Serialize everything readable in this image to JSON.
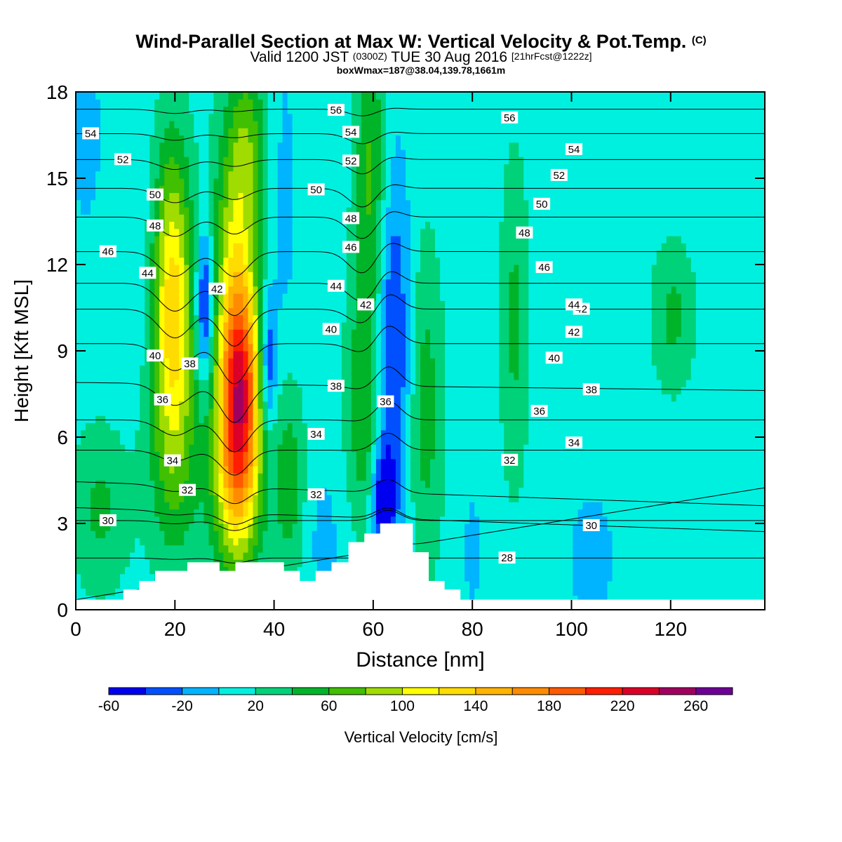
{
  "titles": {
    "main": "Wind-Parallel Section at Max W: Vertical Velocity & Pot.Temp.",
    "copyright": "(C)",
    "valid_prefix": "Valid 1200 JST",
    "utc": "(0300Z)",
    "valid_date": "TUE 30 Aug 2016",
    "forecast": "[21hrFcst@1222z]",
    "box": "boxWmax=187@38.04,139.78,1661m"
  },
  "colors": {
    "bins": [
      "#0000f0",
      "#0050ff",
      "#00b4ff",
      "#00f0e0",
      "#00d27a",
      "#00b42a",
      "#40c000",
      "#a0dc00",
      "#ffff00",
      "#ffdc00",
      "#ffb400",
      "#ff8c00",
      "#ff5a00",
      "#ff1e00",
      "#dc0028",
      "#a00060",
      "#6e0096"
    ],
    "contour": "#000000",
    "terrain": "#ffffff"
  },
  "chart_data": {
    "type": "heatmap",
    "title": "Wind-Parallel Section at Max W: Vertical Velocity & Pot.Temp.",
    "xlabel": "Distance [nm]",
    "ylabel": "Height [Kft MSL]",
    "xlim": [
      0,
      139
    ],
    "ylim": [
      0,
      18
    ],
    "xticks": [
      0,
      20,
      40,
      60,
      80,
      100,
      120
    ],
    "yticks": [
      0,
      3,
      6,
      9,
      12,
      15,
      18
    ],
    "colorbar": {
      "label": "Vertical Velocity [cm/s]",
      "boundaries": [
        -60,
        -40,
        -20,
        0,
        20,
        40,
        60,
        80,
        100,
        120,
        140,
        160,
        180,
        200,
        220,
        240,
        260,
        280
      ],
      "tick_labels": [
        "-60",
        "-20",
        "20",
        "60",
        "100",
        "140",
        "180",
        "220",
        "260"
      ]
    },
    "background_w": 10,
    "features": [
      {
        "x": 19.5,
        "y": 11.0,
        "w": 115,
        "sx": 2.8,
        "sy": 3.6
      },
      {
        "x": 20.0,
        "y": 5.5,
        "w": 45,
        "sx": 4.0,
        "sy": 3.0
      },
      {
        "x": 33.0,
        "y": 8.0,
        "w": 185,
        "sx": 3.0,
        "sy": 2.8
      },
      {
        "x": 32.5,
        "y": 4.5,
        "w": 95,
        "sx": 3.5,
        "sy": 2.5
      },
      {
        "x": 32.0,
        "y": 13.5,
        "w": 65,
        "sx": 3.0,
        "sy": 3.0
      },
      {
        "x": 35.0,
        "y": 16.5,
        "w": 45,
        "sx": 2.5,
        "sy": 2.0
      },
      {
        "x": 26.0,
        "y": 10.5,
        "w": -70,
        "sx": 1.2,
        "sy": 2.0
      },
      {
        "x": 38.8,
        "y": 8.5,
        "w": -65,
        "sx": 1.2,
        "sy": 1.8
      },
      {
        "x": 43.0,
        "y": 4.5,
        "w": 45,
        "sx": 2.2,
        "sy": 2.5
      },
      {
        "x": 62.0,
        "y": 3.8,
        "w": -75,
        "sx": 1.5,
        "sy": 1.2
      },
      {
        "x": 64.0,
        "y": 9.0,
        "w": -55,
        "sx": 2.5,
        "sy": 4.5
      },
      {
        "x": 59.5,
        "y": 15.0,
        "w": 55,
        "sx": 2.3,
        "sy": 4.0
      },
      {
        "x": 58.0,
        "y": 7.0,
        "w": 45,
        "sx": 2.5,
        "sy": 3.0
      },
      {
        "x": 70.5,
        "y": 7.0,
        "w": 40,
        "sx": 2.5,
        "sy": 4.0
      },
      {
        "x": 88.5,
        "y": 10.0,
        "w": 35,
        "sx": 2.0,
        "sy": 4.0
      },
      {
        "x": 120.5,
        "y": 10.2,
        "w": 35,
        "sx": 3.0,
        "sy": 1.8
      },
      {
        "x": 5.0,
        "y": 3.5,
        "w": 35,
        "sx": 4.0,
        "sy": 2.0
      },
      {
        "x": 2.0,
        "y": 16.5,
        "w": -15,
        "sx": 3.0,
        "sy": 3.0
      },
      {
        "x": 12.0,
        "y": 12.0,
        "w": -12,
        "sx": 3.0,
        "sy": 3.0
      },
      {
        "x": 42.0,
        "y": 14.0,
        "w": -15,
        "sx": 2.0,
        "sy": 5.0
      },
      {
        "x": 50.0,
        "y": 2.5,
        "w": -15,
        "sx": 3.0,
        "sy": 2.0
      },
      {
        "x": 80.0,
        "y": 2.0,
        "w": -15,
        "sx": 1.5,
        "sy": 2.0
      },
      {
        "x": 104.0,
        "y": 1.8,
        "w": -17,
        "sx": 4.0,
        "sy": 2.0
      }
    ],
    "terrain": [
      [
        0,
        0.35
      ],
      [
        9.6,
        0.35
      ],
      [
        9.6,
        0.7
      ],
      [
        12.8,
        0.7
      ],
      [
        12.8,
        1.0
      ],
      [
        16,
        1.0
      ],
      [
        16,
        1.35
      ],
      [
        22.5,
        1.35
      ],
      [
        22.5,
        1.65
      ],
      [
        29,
        1.65
      ],
      [
        29,
        1.35
      ],
      [
        32.2,
        1.35
      ],
      [
        32.2,
        1.65
      ],
      [
        42,
        1.65
      ],
      [
        42,
        1.35
      ],
      [
        45.2,
        1.35
      ],
      [
        45.2,
        1.0
      ],
      [
        48.4,
        1.0
      ],
      [
        48.4,
        1.35
      ],
      [
        51.6,
        1.35
      ],
      [
        51.6,
        1.65
      ],
      [
        55,
        1.65
      ],
      [
        55,
        2.35
      ],
      [
        58.2,
        2.35
      ],
      [
        58.2,
        2.65
      ],
      [
        61.4,
        2.65
      ],
      [
        61.4,
        3.0
      ],
      [
        68,
        3.0
      ],
      [
        68,
        2.0
      ],
      [
        71.2,
        2.0
      ],
      [
        71.2,
        1.0
      ],
      [
        74.4,
        1.0
      ],
      [
        74.4,
        0.7
      ],
      [
        77.6,
        0.7
      ],
      [
        77.6,
        0.35
      ],
      [
        139,
        0.35
      ]
    ],
    "theta_levels": [
      {
        "value": 26,
        "base": 0.35,
        "slope": 0.028,
        "label": ""
      },
      {
        "value": 28,
        "base": 1.8,
        "slope": 0.0,
        "label": "28",
        "label_x": 87
      },
      {
        "value": 30,
        "base": 3.1,
        "slope": 0.0,
        "label": "30",
        "label_x": 6.5
      },
      {
        "value": 30,
        "base": 3.55,
        "slope": -0.006,
        "label": "30",
        "label_x": 104
      },
      {
        "value": 32,
        "base": 4.45,
        "slope": -0.006,
        "label": "32",
        "label_x": 22.5
      },
      {
        "value": 34,
        "base": 5.55,
        "slope": 0.0,
        "label": "34",
        "label_x": 19.5
      },
      {
        "value": 36,
        "base": 6.6,
        "slope": 0.0,
        "label": "36",
        "label_x": 62.5
      },
      {
        "value": 38,
        "base": 7.9,
        "slope": -0.002,
        "label": "38",
        "label_x": 52.5
      },
      {
        "value": 40,
        "base": 9.25,
        "slope": 0.0,
        "label": "40",
        "label_x": 16
      },
      {
        "value": 42,
        "base": 10.45,
        "slope": 0.0,
        "label": "42",
        "label_x": 102
      },
      {
        "value": 44,
        "base": 11.35,
        "slope": 0.0,
        "label": "44",
        "label_x": 52.5
      },
      {
        "value": 46,
        "base": 12.45,
        "slope": 0.0,
        "label": "46",
        "label_x": 6.5
      },
      {
        "value": 48,
        "base": 13.65,
        "slope": 0.0,
        "label": "48",
        "label_x": 16
      },
      {
        "value": 50,
        "base": 14.65,
        "slope": 0.0,
        "label": "50",
        "label_x": 16
      },
      {
        "value": 52,
        "base": 15.65,
        "slope": 0.0,
        "label": "52",
        "label_x": 9.5
      },
      {
        "value": 54,
        "base": 16.55,
        "slope": 0.0,
        "label": "54",
        "label_x": 3
      },
      {
        "value": 56,
        "base": 17.4,
        "slope": 0.0,
        "label": "56",
        "label_x": 52.5
      }
    ],
    "extra_labels": [
      {
        "text": "56",
        "x": 87.5,
        "y": 17.1
      },
      {
        "text": "54",
        "x": 55.5,
        "y": 16.6
      },
      {
        "text": "54",
        "x": 100.5,
        "y": 16.0
      },
      {
        "text": "52",
        "x": 55.5,
        "y": 15.6
      },
      {
        "text": "52",
        "x": 97.5,
        "y": 15.1
      },
      {
        "text": "50",
        "x": 48.5,
        "y": 14.6
      },
      {
        "text": "50",
        "x": 94,
        "y": 14.1
      },
      {
        "text": "48",
        "x": 55.5,
        "y": 13.6
      },
      {
        "text": "48",
        "x": 90.5,
        "y": 13.1
      },
      {
        "text": "46",
        "x": 55.5,
        "y": 12.6
      },
      {
        "text": "46",
        "x": 94.5,
        "y": 11.9
      },
      {
        "text": "44",
        "x": 14.5,
        "y": 11.7
      },
      {
        "text": "44",
        "x": 100.5,
        "y": 10.6
      },
      {
        "text": "42",
        "x": 28.5,
        "y": 11.15
      },
      {
        "text": "42",
        "x": 58.5,
        "y": 10.6
      },
      {
        "text": "42",
        "x": 100.5,
        "y": 9.65
      },
      {
        "text": "40",
        "x": 51.5,
        "y": 9.75
      },
      {
        "text": "40",
        "x": 96.5,
        "y": 8.75
      },
      {
        "text": "38",
        "x": 23,
        "y": 8.55
      },
      {
        "text": "38",
        "x": 104,
        "y": 7.65
      },
      {
        "text": "36",
        "x": 17.5,
        "y": 7.3
      },
      {
        "text": "36",
        "x": 93.5,
        "y": 6.9
      },
      {
        "text": "34",
        "x": 48.5,
        "y": 6.1
      },
      {
        "text": "34",
        "x": 100.5,
        "y": 5.8
      },
      {
        "text": "32",
        "x": 48.5,
        "y": 4.0
      },
      {
        "text": "32",
        "x": 87.5,
        "y": 5.2
      }
    ]
  }
}
